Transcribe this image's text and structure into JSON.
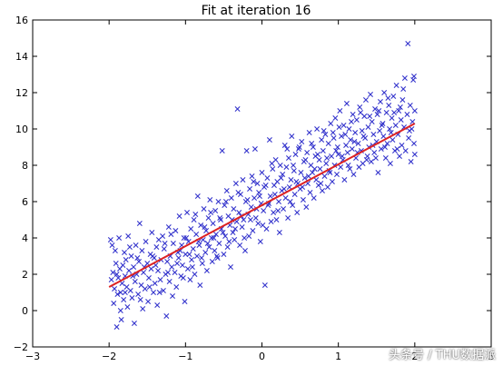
{
  "watermark": "头条号 / THU数据派",
  "chart_data": {
    "type": "scatter",
    "title": "Fit at iteration 16",
    "xlabel": "",
    "ylabel": "",
    "xlim": [
      -3,
      3
    ],
    "ylim": [
      -2,
      16
    ],
    "xticks": [
      "−3",
      "−2",
      "−1",
      "0",
      "1",
      "2",
      "3"
    ],
    "yticks": [
      "−2",
      "0",
      "2",
      "4",
      "6",
      "8",
      "10",
      "12",
      "14",
      "16"
    ],
    "xtick_values": [
      -3,
      -2,
      -1,
      0,
      1,
      2,
      3
    ],
    "ytick_values": [
      -2,
      0,
      2,
      4,
      6,
      8,
      10,
      12,
      14,
      16
    ],
    "grid": false,
    "marker_color": "#3333cc",
    "line_color": "#dd2222",
    "fit_line": {
      "x": [
        -2.0,
        2.0
      ],
      "y": [
        1.3,
        10.3
      ]
    },
    "scatter_points": [
      [
        -1.98,
        3.9
      ],
      [
        -1.97,
        1.7
      ],
      [
        -1.95,
        2.1
      ],
      [
        -1.94,
        0.4
      ],
      [
        -1.93,
        1.2
      ],
      [
        -1.92,
        3.3
      ],
      [
        -1.91,
        2.6
      ],
      [
        -1.9,
        -0.9
      ],
      [
        -1.89,
        0.9
      ],
      [
        -1.88,
        1.8
      ],
      [
        -1.87,
        4.0
      ],
      [
        -1.86,
        2.3
      ],
      [
        -1.85,
        1.0
      ],
      [
        -1.84,
        -0.5
      ],
      [
        -1.83,
        1.5
      ],
      [
        -1.82,
        2.5
      ],
      [
        -1.81,
        0.6
      ],
      [
        -1.8,
        3.2
      ],
      [
        -1.79,
        1.9
      ],
      [
        -1.78,
        2.8
      ],
      [
        -1.77,
        1.3
      ],
      [
        -1.76,
        0.2
      ],
      [
        -1.75,
        4.1
      ],
      [
        -1.74,
        2.2
      ],
      [
        -1.72,
        1.1
      ],
      [
        -1.71,
        3.0
      ],
      [
        -1.7,
        0.7
      ],
      [
        -1.68,
        2.4
      ],
      [
        -1.67,
        -0.7
      ],
      [
        -1.66,
        1.6
      ],
      [
        -1.65,
        3.6
      ],
      [
        -1.64,
        2.0
      ],
      [
        -1.62,
        0.9
      ],
      [
        -1.61,
        2.7
      ],
      [
        -1.6,
        4.8
      ],
      [
        -1.58,
        1.4
      ],
      [
        -1.57,
        3.3
      ],
      [
        -1.56,
        0.1
      ],
      [
        -1.55,
        2.1
      ],
      [
        -1.53,
        1.2
      ],
      [
        -1.52,
        3.8
      ],
      [
        -1.5,
        2.6
      ],
      [
        -1.49,
        0.5
      ],
      [
        -1.48,
        1.8
      ],
      [
        -1.46,
        3.1
      ],
      [
        -1.45,
        2.3
      ],
      [
        -1.44,
        4.3
      ],
      [
        -1.42,
        1.0
      ],
      [
        -1.41,
        2.9
      ],
      [
        -1.4,
        1.5
      ],
      [
        -1.38,
        3.5
      ],
      [
        -1.37,
        0.3
      ],
      [
        -1.36,
        2.2
      ],
      [
        -1.35,
        3.9
      ],
      [
        -1.33,
        1.7
      ],
      [
        -1.32,
        2.8
      ],
      [
        -1.3,
        4.1
      ],
      [
        -1.29,
        1.1
      ],
      [
        -1.28,
        3.4
      ],
      [
        -1.26,
        2.0
      ],
      [
        -1.25,
        -0.3
      ],
      [
        -1.24,
        2.7
      ],
      [
        -1.22,
        4.6
      ],
      [
        -1.21,
        1.6
      ],
      [
        -1.2,
        3.0
      ],
      [
        -1.18,
        2.4
      ],
      [
        -1.17,
        0.8
      ],
      [
        -1.16,
        3.7
      ],
      [
        -1.14,
        2.1
      ],
      [
        -1.13,
        4.4
      ],
      [
        -1.12,
        1.3
      ],
      [
        -1.1,
        3.2
      ],
      [
        -1.09,
        2.9
      ],
      [
        -1.08,
        5.2
      ],
      [
        -1.06,
        1.9
      ],
      [
        -1.05,
        3.6
      ],
      [
        -1.04,
        2.5
      ],
      [
        -1.02,
        4.0
      ],
      [
        -1.01,
        0.5
      ],
      [
        -1.0,
        3.1
      ],
      [
        -0.98,
        5.4
      ],
      [
        -0.97,
        2.3
      ],
      [
        -0.96,
        3.8
      ],
      [
        -0.94,
        1.7
      ],
      [
        -0.93,
        4.5
      ],
      [
        -0.92,
        2.8
      ],
      [
        -0.9,
        3.4
      ],
      [
        -0.89,
        5.0
      ],
      [
        -0.88,
        2.0
      ],
      [
        -0.86,
        4.2
      ],
      [
        -0.85,
        3.0
      ],
      [
        -0.84,
        6.3
      ],
      [
        -0.82,
        3.6
      ],
      [
        -0.81,
        1.4
      ],
      [
        -0.8,
        4.7
      ],
      [
        -0.78,
        2.6
      ],
      [
        -0.77,
        3.9
      ],
      [
        -0.76,
        5.6
      ],
      [
        -0.74,
        3.2
      ],
      [
        -0.73,
        4.4
      ],
      [
        -0.72,
        2.2
      ],
      [
        -0.7,
        5.1
      ],
      [
        -0.69,
        3.5
      ],
      [
        -0.68,
        6.1
      ],
      [
        -0.66,
        4.0
      ],
      [
        -0.65,
        2.7
      ],
      [
        -0.64,
        4.8
      ],
      [
        -0.62,
        3.3
      ],
      [
        -0.61,
        5.5
      ],
      [
        -0.6,
        4.2
      ],
      [
        -0.58,
        2.9
      ],
      [
        -0.57,
        6.0
      ],
      [
        -0.56,
        3.7
      ],
      [
        -0.54,
        5.0
      ],
      [
        -0.53,
        4.5
      ],
      [
        -0.52,
        8.8
      ],
      [
        -0.5,
        3.1
      ],
      [
        -0.49,
        5.8
      ],
      [
        -0.48,
        4.1
      ],
      [
        -0.46,
        6.6
      ],
      [
        -0.45,
        3.5
      ],
      [
        -0.44,
        5.2
      ],
      [
        -0.42,
        4.7
      ],
      [
        -0.41,
        2.4
      ],
      [
        -0.4,
        6.2
      ],
      [
        -0.38,
        4.3
      ],
      [
        -0.37,
        5.6
      ],
      [
        -0.36,
        3.9
      ],
      [
        -0.34,
        7.0
      ],
      [
        -0.33,
        4.9
      ],
      [
        -0.32,
        11.1
      ],
      [
        -0.3,
        5.4
      ],
      [
        -0.29,
        3.6
      ],
      [
        -0.28,
        6.4
      ],
      [
        -0.26,
        4.6
      ],
      [
        -0.25,
        7.2
      ],
      [
        -0.24,
        5.0
      ],
      [
        -0.22,
        3.3
      ],
      [
        -0.21,
        6.0
      ],
      [
        -0.2,
        8.8
      ],
      [
        -0.18,
        5.3
      ],
      [
        -0.17,
        4.1
      ],
      [
        -0.16,
        6.7
      ],
      [
        -0.14,
        5.7
      ],
      [
        -0.13,
        7.4
      ],
      [
        -0.12,
        4.4
      ],
      [
        -0.1,
        6.2
      ],
      [
        -0.09,
        8.9
      ],
      [
        -0.08,
        5.1
      ],
      [
        -0.06,
        7.0
      ],
      [
        -0.05,
        4.8
      ],
      [
        -0.04,
        6.5
      ],
      [
        -0.02,
        3.8
      ],
      [
        -0.01,
        5.9
      ],
      [
        0.0,
        7.6
      ],
      [
        0.02,
        5.5
      ],
      [
        0.03,
        6.8
      ],
      [
        0.04,
        1.4
      ],
      [
        0.06,
        4.5
      ],
      [
        0.07,
        7.3
      ],
      [
        0.08,
        5.8
      ],
      [
        0.1,
        9.4
      ],
      [
        0.11,
        6.3
      ],
      [
        0.12,
        4.9
      ],
      [
        0.14,
        7.8
      ],
      [
        0.15,
        5.4
      ],
      [
        0.16,
        6.9
      ],
      [
        0.18,
        8.3
      ],
      [
        0.19,
        5.0
      ],
      [
        0.2,
        7.1
      ],
      [
        0.22,
        6.0
      ],
      [
        0.23,
        4.3
      ],
      [
        0.24,
        8.0
      ],
      [
        0.26,
        6.6
      ],
      [
        0.27,
        7.5
      ],
      [
        0.28,
        5.6
      ],
      [
        0.3,
        9.1
      ],
      [
        0.31,
        6.2
      ],
      [
        0.32,
        7.9
      ],
      [
        0.34,
        5.1
      ],
      [
        0.35,
        8.4
      ],
      [
        0.36,
        6.8
      ],
      [
        0.38,
        7.2
      ],
      [
        0.39,
        9.6
      ],
      [
        0.4,
        5.8
      ],
      [
        0.42,
        7.7
      ],
      [
        0.43,
        6.4
      ],
      [
        0.44,
        8.6
      ],
      [
        0.46,
        5.4
      ],
      [
        0.47,
        7.0
      ],
      [
        0.48,
        8.9
      ],
      [
        0.5,
        6.7
      ],
      [
        0.51,
        7.6
      ],
      [
        0.52,
        9.3
      ],
      [
        0.54,
        6.1
      ],
      [
        0.55,
        8.2
      ],
      [
        0.56,
        7.3
      ],
      [
        0.58,
        5.7
      ],
      [
        0.59,
        8.7
      ],
      [
        0.6,
        7.0
      ],
      [
        0.62,
        9.8
      ],
      [
        0.63,
        6.5
      ],
      [
        0.64,
        8.0
      ],
      [
        0.66,
        7.6
      ],
      [
        0.67,
        9.0
      ],
      [
        0.68,
        6.2
      ],
      [
        0.7,
        8.5
      ],
      [
        0.71,
        7.2
      ],
      [
        0.72,
        10.0
      ],
      [
        0.74,
        6.9
      ],
      [
        0.75,
        8.3
      ],
      [
        0.76,
        7.8
      ],
      [
        0.78,
        9.4
      ],
      [
        0.79,
        6.6
      ],
      [
        0.8,
        8.8
      ],
      [
        0.82,
        7.4
      ],
      [
        0.83,
        9.7
      ],
      [
        0.84,
        8.1
      ],
      [
        0.86,
        6.8
      ],
      [
        0.87,
        9.2
      ],
      [
        0.88,
        7.7
      ],
      [
        0.9,
        10.3
      ],
      [
        0.91,
        8.5
      ],
      [
        0.92,
        7.1
      ],
      [
        0.94,
        9.5
      ],
      [
        0.95,
        8.0
      ],
      [
        0.96,
        10.6
      ],
      [
        0.98,
        7.5
      ],
      [
        0.99,
        9.0
      ],
      [
        1.0,
        8.6
      ],
      [
        1.02,
        11.0
      ],
      [
        1.03,
        7.9
      ],
      [
        1.04,
        9.6
      ],
      [
        1.06,
        8.3
      ],
      [
        1.07,
        10.2
      ],
      [
        1.08,
        7.2
      ],
      [
        1.1,
        9.1
      ],
      [
        1.11,
        11.4
      ],
      [
        1.12,
        8.7
      ],
      [
        1.14,
        10.0
      ],
      [
        1.15,
        7.8
      ],
      [
        1.16,
        9.4
      ],
      [
        1.18,
        8.9
      ],
      [
        1.19,
        10.8
      ],
      [
        1.2,
        7.5
      ],
      [
        1.22,
        9.8
      ],
      [
        1.23,
        8.4
      ],
      [
        1.24,
        10.5
      ],
      [
        1.26,
        9.2
      ],
      [
        1.27,
        7.9
      ],
      [
        1.28,
        11.2
      ],
      [
        1.3,
        8.8
      ],
      [
        1.31,
        9.9
      ],
      [
        1.32,
        8.1
      ],
      [
        1.34,
        10.7
      ],
      [
        1.35,
        9.5
      ],
      [
        1.36,
        11.6
      ],
      [
        1.38,
        8.5
      ],
      [
        1.39,
        10.1
      ],
      [
        1.4,
        9.0
      ],
      [
        1.42,
        11.9
      ],
      [
        1.43,
        8.2
      ],
      [
        1.44,
        10.4
      ],
      [
        1.46,
        9.7
      ],
      [
        1.47,
        8.7
      ],
      [
        1.48,
        11.1
      ],
      [
        1.5,
        9.3
      ],
      [
        1.51,
        10.8
      ],
      [
        1.52,
        7.6
      ],
      [
        1.54,
        9.9
      ],
      [
        1.55,
        11.5
      ],
      [
        1.56,
        8.9
      ],
      [
        1.58,
        10.3
      ],
      [
        1.59,
        9.6
      ],
      [
        1.6,
        12.0
      ],
      [
        1.62,
        8.4
      ],
      [
        1.63,
        10.9
      ],
      [
        1.64,
        9.2
      ],
      [
        1.66,
        11.3
      ],
      [
        1.67,
        10.0
      ],
      [
        1.68,
        8.1
      ],
      [
        1.7,
        10.6
      ],
      [
        1.71,
        9.4
      ],
      [
        1.72,
        11.8
      ],
      [
        1.74,
        8.8
      ],
      [
        1.75,
        10.2
      ],
      [
        1.76,
        12.4
      ],
      [
        1.78,
        9.7
      ],
      [
        1.79,
        11.0
      ],
      [
        1.8,
        8.5
      ],
      [
        1.82,
        10.5
      ],
      [
        1.83,
        9.1
      ],
      [
        1.84,
        11.6
      ],
      [
        1.86,
        10.1
      ],
      [
        1.87,
        12.8
      ],
      [
        1.88,
        8.8
      ],
      [
        1.9,
        10.8
      ],
      [
        1.91,
        14.7
      ],
      [
        1.92,
        9.5
      ],
      [
        1.94,
        11.3
      ],
      [
        1.95,
        8.2
      ],
      [
        1.96,
        10.0
      ],
      [
        1.98,
        12.7
      ],
      [
        1.99,
        9.2
      ],
      [
        2.0,
        11.0
      ],
      [
        2.0,
        8.6
      ],
      [
        1.99,
        12.9
      ],
      [
        1.97,
        10.4
      ],
      [
        1.93,
        9.9
      ],
      [
        1.85,
        12.2
      ],
      [
        -1.96,
        3.6
      ],
      [
        -1.9,
        2.0
      ],
      [
        -1.85,
        0.0
      ],
      [
        -1.79,
        1.0
      ],
      [
        -1.73,
        3.5
      ],
      [
        -1.69,
        1.9
      ],
      [
        -1.63,
        2.9
      ],
      [
        -1.59,
        0.6
      ],
      [
        -1.54,
        2.4
      ],
      [
        -1.47,
        1.3
      ],
      [
        -1.43,
        3.0
      ],
      [
        -1.39,
        2.5
      ],
      [
        -1.34,
        1.0
      ],
      [
        -1.27,
        3.7
      ],
      [
        -1.23,
        2.1
      ],
      [
        -1.19,
        4.2
      ],
      [
        -1.11,
        2.6
      ],
      [
        -1.07,
        3.3
      ],
      [
        -1.03,
        1.8
      ],
      [
        -0.99,
        4.0
      ],
      [
        -0.95,
        3.1
      ],
      [
        -0.91,
        2.4
      ],
      [
        -0.87,
        5.3
      ],
      [
        -0.83,
        3.8
      ],
      [
        -0.79,
        2.9
      ],
      [
        -0.75,
        4.6
      ],
      [
        -0.71,
        3.7
      ],
      [
        -0.67,
        5.4
      ],
      [
        -0.63,
        4.0
      ],
      [
        -0.59,
        3.0
      ],
      [
        -0.55,
        5.1
      ],
      [
        -0.51,
        4.3
      ],
      [
        -0.47,
        6.0
      ],
      [
        -0.43,
        3.8
      ],
      [
        -0.39,
        5.0
      ],
      [
        -0.35,
        4.5
      ],
      [
        -0.31,
        6.5
      ],
      [
        -0.27,
        5.2
      ],
      [
        -0.23,
        4.0
      ],
      [
        -0.19,
        6.1
      ],
      [
        -0.15,
        5.0
      ],
      [
        -0.11,
        7.1
      ],
      [
        -0.07,
        5.6
      ],
      [
        -0.03,
        6.3
      ],
      [
        0.01,
        4.7
      ],
      [
        0.05,
        6.9
      ],
      [
        0.09,
        5.9
      ],
      [
        0.13,
        8.1
      ],
      [
        0.17,
        6.4
      ],
      [
        0.21,
        5.5
      ],
      [
        0.25,
        7.3
      ],
      [
        0.29,
        6.7
      ],
      [
        0.33,
        8.9
      ],
      [
        0.37,
        6.0
      ],
      [
        0.41,
        8.0
      ],
      [
        0.45,
        7.1
      ],
      [
        0.49,
        9.0
      ],
      [
        0.53,
        6.8
      ],
      [
        0.57,
        8.3
      ],
      [
        0.61,
        7.4
      ],
      [
        0.65,
        9.2
      ],
      [
        0.69,
        7.8
      ],
      [
        0.73,
        8.6
      ],
      [
        0.77,
        7.0
      ],
      [
        0.81,
        9.9
      ],
      [
        0.85,
        8.4
      ],
      [
        0.89,
        7.6
      ],
      [
        0.93,
        9.8
      ],
      [
        0.97,
        8.8
      ],
      [
        1.01,
        10.1
      ],
      [
        1.05,
        8.5
      ],
      [
        1.09,
        9.7
      ],
      [
        1.13,
        8.0
      ],
      [
        1.17,
        10.4
      ],
      [
        1.21,
        9.3
      ],
      [
        1.25,
        8.7
      ],
      [
        1.29,
        10.9
      ],
      [
        1.33,
        9.6
      ],
      [
        1.37,
        8.3
      ],
      [
        1.41,
        10.7
      ],
      [
        1.45,
        9.1
      ],
      [
        1.49,
        8.4
      ],
      [
        1.53,
        11.0
      ],
      [
        1.57,
        10.2
      ],
      [
        1.61,
        9.0
      ],
      [
        1.65,
        11.7
      ],
      [
        1.69,
        9.8
      ],
      [
        1.73,
        10.9
      ],
      [
        1.77,
        8.9
      ],
      [
        1.81,
        11.2
      ]
    ]
  }
}
